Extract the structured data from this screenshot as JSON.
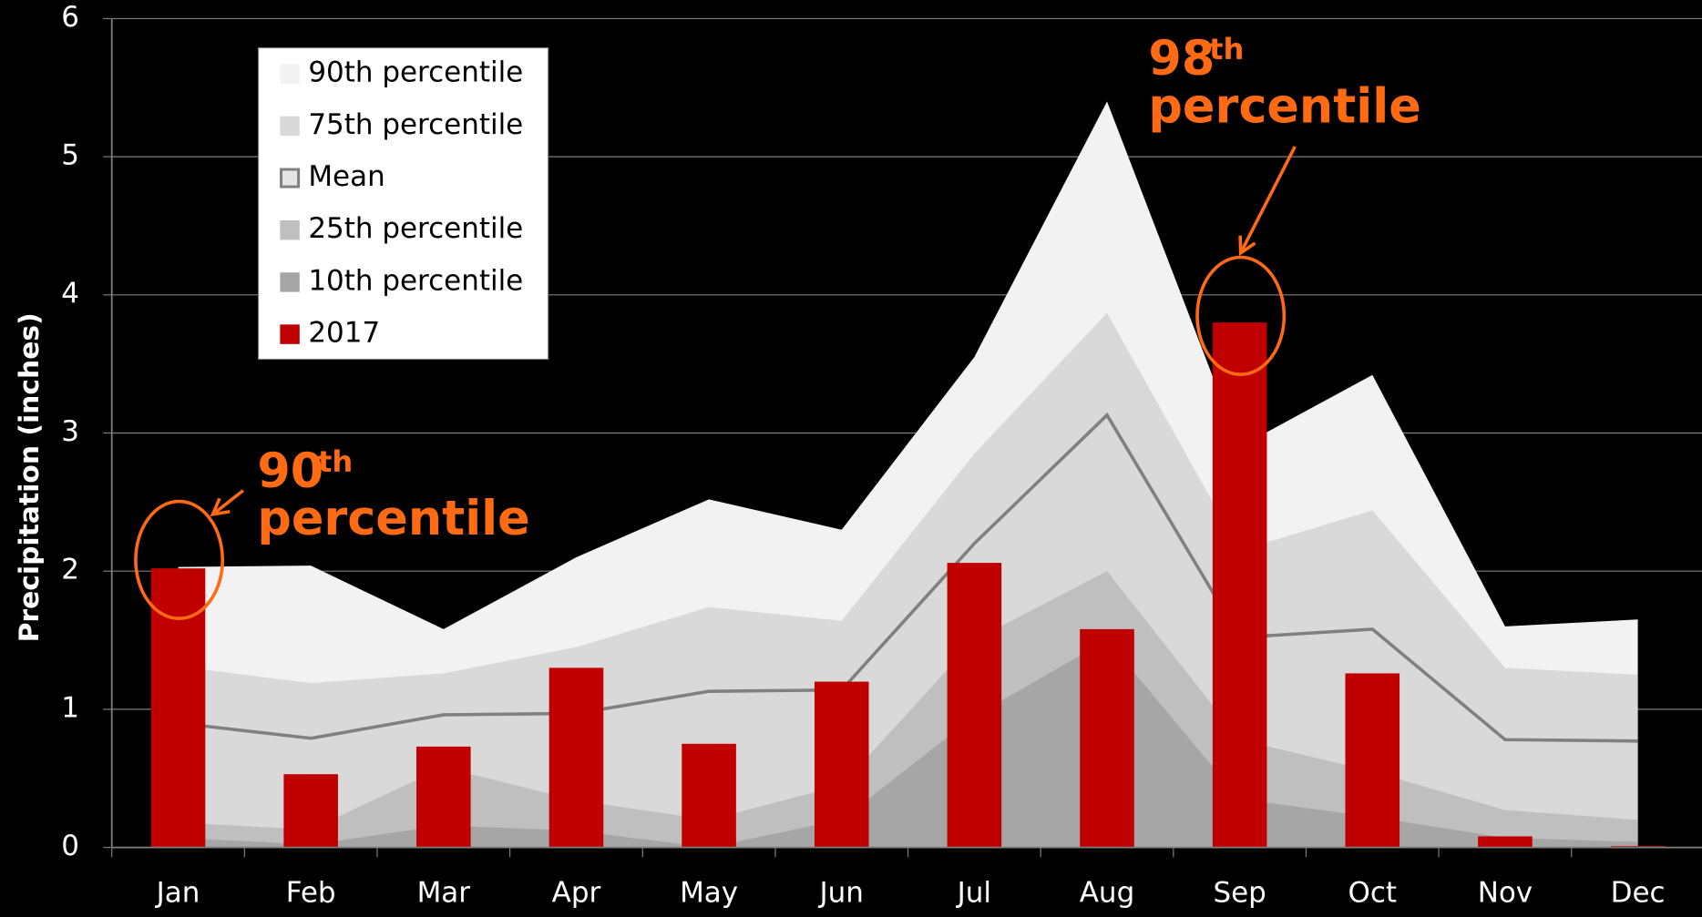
{
  "chart_data": {
    "type": "bar",
    "y_label": "Precipitation (inches)",
    "categories": [
      "Jan",
      "Feb",
      "Mar",
      "Apr",
      "May",
      "Jun",
      "Jul",
      "Aug",
      "Sep",
      "Oct",
      "Nov",
      "Dec"
    ],
    "series": [
      {
        "name": "90th percentile",
        "kind": "area",
        "color": "#f2f2f2",
        "values": [
          2.03,
          2.04,
          1.58,
          2.1,
          2.52,
          2.3,
          3.55,
          5.4,
          2.9,
          3.42,
          1.6,
          1.65
        ]
      },
      {
        "name": "75th percentile",
        "kind": "area",
        "color": "#d9d9d9",
        "values": [
          1.31,
          1.19,
          1.26,
          1.45,
          1.74,
          1.64,
          2.85,
          3.87,
          2.15,
          2.44,
          1.3,
          1.25
        ]
      },
      {
        "name": "Mean",
        "kind": "line",
        "color": "#808080",
        "values": [
          0.9,
          0.79,
          0.96,
          0.97,
          1.13,
          1.14,
          2.2,
          3.13,
          1.52,
          1.58,
          0.78,
          0.77
        ]
      },
      {
        "name": "25th percentile",
        "kind": "area",
        "color": "#bfbfbf",
        "values": [
          0.18,
          0.13,
          0.58,
          0.34,
          0.2,
          0.45,
          1.5,
          2.0,
          0.78,
          0.55,
          0.27,
          0.2
        ]
      },
      {
        "name": "10th percentile",
        "kind": "area",
        "color": "#a6a6a6",
        "values": [
          0.07,
          0.02,
          0.16,
          0.12,
          0.0,
          0.2,
          0.95,
          1.5,
          0.35,
          0.22,
          0.07,
          0.04
        ]
      },
      {
        "name": "2017",
        "kind": "bar",
        "color": "#c00000",
        "values": [
          2.02,
          0.53,
          0.73,
          1.3,
          0.75,
          1.2,
          2.06,
          1.58,
          3.8,
          1.26,
          0.08,
          0.01
        ]
      }
    ],
    "ylim": [
      0,
      6
    ],
    "yticks": [
      0,
      1,
      2,
      3,
      4,
      5,
      6
    ],
    "legend": "upper left",
    "annotations": [
      {
        "number": "90",
        "sup": "th",
        "text": "percentile",
        "color": "#ff6a13"
      },
      {
        "number": "98",
        "sup": "th",
        "text": "percentile",
        "color": "#ff6a13"
      }
    ]
  }
}
